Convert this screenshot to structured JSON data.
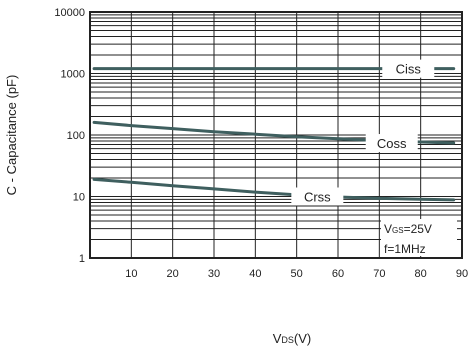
{
  "chart_data": {
    "type": "line",
    "xlabel": "VDS(V)",
    "ylabel": "C - Capacitance (pF)",
    "xscale": "linear",
    "yscale": "log",
    "xlim": [
      0,
      90
    ],
    "ylim": [
      1,
      10000
    ],
    "grid": true,
    "xticks": [
      10,
      20,
      30,
      40,
      50,
      60,
      70,
      80,
      90
    ],
    "yticks": [
      {
        "value": 1,
        "label": "1"
      },
      {
        "value": 10,
        "label": "10"
      },
      {
        "value": 100,
        "label": "100"
      },
      {
        "value": 1000,
        "label": "1000"
      },
      {
        "value": 10000,
        "label": "10000"
      }
    ],
    "series": [
      {
        "name": "Ciss",
        "color": "#3f5f5f",
        "x": [
          1,
          88
        ],
        "y": [
          1200,
          1200
        ]
      },
      {
        "name": "Coss",
        "color": "#3f5f5f",
        "x": [
          1,
          10,
          20,
          30,
          40,
          50,
          60,
          70,
          80,
          88
        ],
        "y": [
          160,
          142,
          127,
          113,
          103,
          94,
          87,
          81,
          77,
          74
        ]
      },
      {
        "name": "Crss",
        "color": "#3f5f5f",
        "x": [
          1,
          10,
          20,
          30,
          40,
          50,
          60,
          70,
          80,
          88
        ],
        "y": [
          19,
          17,
          15,
          13.3,
          11.8,
          10.6,
          9.8,
          9.3,
          9.0,
          8.8
        ]
      }
    ],
    "series_label_positions": [
      {
        "name": "Ciss",
        "x": 77,
        "y": 1200
      },
      {
        "name": "Coss",
        "x": 73,
        "y": 74
      },
      {
        "name": "Crss",
        "x": 55,
        "y": 10
      }
    ],
    "conditions": [
      "VGS=25V",
      "f=1MHz"
    ]
  },
  "ui": {
    "xlabel_main": "V",
    "xlabel_sub": "DS",
    "xlabel_suffix": "(V)",
    "cond1_main": "V",
    "cond1_sub": "GS",
    "cond1_suffix": "=25V",
    "cond2": "f=1MHz"
  }
}
